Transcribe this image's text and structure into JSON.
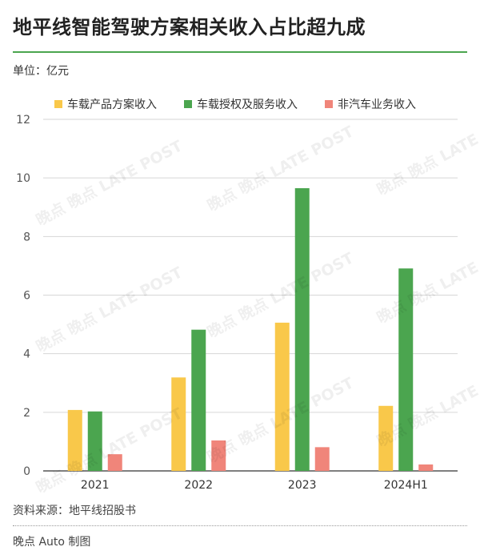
{
  "header": {
    "title": "地平线智能驾驶方案相关收入占比超九成",
    "unit": "单位：亿元"
  },
  "footer": {
    "source": "资料来源：地平线招股书",
    "credit": "晚点 Auto 制图"
  },
  "watermark": {
    "text": "晚点 LATE POST"
  },
  "colors": {
    "accent": "#4ba54f",
    "product": "#f9c84a",
    "license": "#4ba54f",
    "non_auto": "#f0857a"
  },
  "chart_data": {
    "type": "bar",
    "categories": [
      "2021",
      "2022",
      "2023",
      "2024H1"
    ],
    "series": [
      {
        "name": "车载产品方案收入",
        "color": "#f9c84a",
        "values": [
          2.08,
          3.19,
          5.06,
          2.22
        ]
      },
      {
        "name": "车载授权及服务收入",
        "color": "#4ba54f",
        "values": [
          2.03,
          4.82,
          9.65,
          6.91
        ]
      },
      {
        "name": "非汽车业务收入",
        "color": "#f0857a",
        "values": [
          0.57,
          1.04,
          0.81,
          0.22
        ]
      }
    ],
    "ylim": [
      0,
      12
    ],
    "yticks": [
      0,
      2,
      4,
      6,
      8,
      10,
      12
    ],
    "grid": true,
    "legend_position": "top-left"
  }
}
